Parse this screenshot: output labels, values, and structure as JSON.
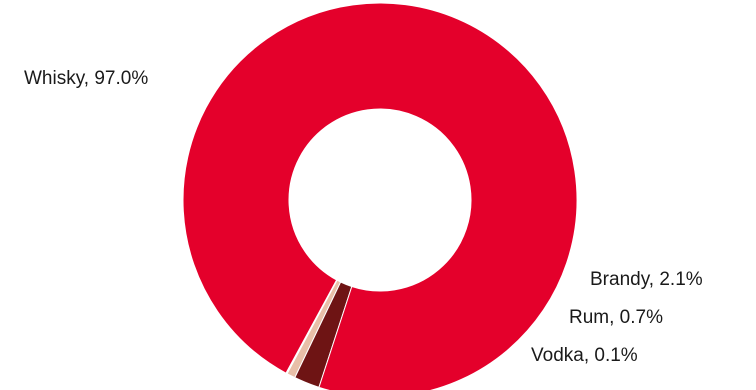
{
  "chart_data": {
    "type": "pie",
    "donut": true,
    "slices": [
      {
        "label": "Whisky",
        "value": 97.0,
        "display": "Whisky, 97.0%",
        "color": "#E4002B"
      },
      {
        "label": "Brandy",
        "value": 2.1,
        "display": "Brandy, 2.1%",
        "color": "#6E1414"
      },
      {
        "label": "Rum",
        "value": 0.7,
        "display": "Rum, 0.7%",
        "color": "#E8BFA8"
      },
      {
        "label": "Vodka",
        "value": 0.1,
        "display": "Vodka, 0.1%",
        "color": "#F2E6DF"
      }
    ]
  }
}
